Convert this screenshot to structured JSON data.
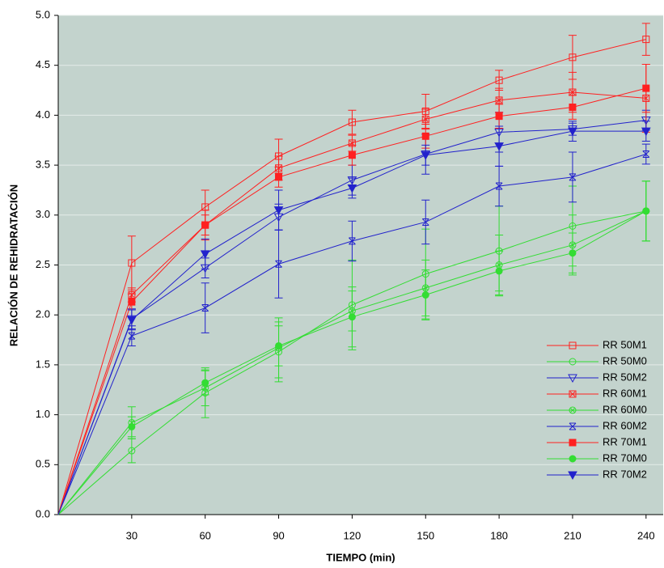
{
  "chart_data": {
    "type": "line",
    "x_label": "TIEMPO (min)",
    "y_label": "RELACIÓN DE REHIDRATACIÓN",
    "x": [
      0,
      30,
      60,
      90,
      120,
      150,
      180,
      210,
      240
    ],
    "xlim": [
      0,
      247
    ],
    "xticks": [
      30,
      60,
      90,
      120,
      150,
      180,
      210,
      240
    ],
    "ylim": [
      0,
      5
    ],
    "yticks": [
      {
        "value": 0,
        "label": "0.0"
      },
      0.5,
      {
        "value": 1,
        "label": "1.0"
      },
      1.5,
      {
        "value": 2,
        "label": "2.0"
      },
      2.5,
      {
        "value": 3,
        "label": "3.0"
      },
      3.5,
      {
        "value": 4,
        "label": "4.0"
      },
      4.5,
      {
        "value": 5,
        "label": "5.0"
      }
    ],
    "grid": true,
    "legend": "lower right",
    "series": [
      {
        "name": "RR 50M1",
        "color": "#ff2020",
        "marker": "square",
        "filled": false,
        "values": [
          0,
          2.52,
          3.08,
          3.59,
          3.93,
          4.04,
          4.35,
          4.58,
          4.76
        ],
        "errors": [
          0,
          0.27,
          0.17,
          0.17,
          0.12,
          0.17,
          0.1,
          0.22,
          0.16
        ]
      },
      {
        "name": "RR 50M0",
        "color": "#33dd33",
        "marker": "circle",
        "filled": false,
        "values": [
          0,
          0.64,
          1.22,
          1.63,
          2.1,
          2.41,
          2.64,
          2.89,
          3.04
        ],
        "errors": [
          0,
          0.12,
          0.25,
          0.3,
          0.45,
          0.45,
          0.45,
          0.4,
          0.3
        ]
      },
      {
        "name": "RR 50M2",
        "color": "#2222cc",
        "marker": "triangle-down",
        "filled": false,
        "values": [
          0,
          1.96,
          2.47,
          2.98,
          3.35,
          3.61,
          3.83,
          3.86,
          3.95
        ],
        "errors": [
          0,
          0.1,
          0.1,
          0.13,
          0.15,
          0.2,
          0.2,
          0.06,
          0.1
        ]
      },
      {
        "name": "RR 60M1",
        "color": "#ff2020",
        "marker": "square-cross",
        "filled": false,
        "values": [
          0,
          2.2,
          2.9,
          3.47,
          3.72,
          3.96,
          4.15,
          4.23,
          4.17
        ],
        "errors": [
          0,
          0.07,
          0.1,
          0.12,
          0.08,
          0.1,
          0.12,
          0.2,
          0.34
        ]
      },
      {
        "name": "RR 60M0",
        "color": "#33dd33",
        "marker": "circle-cross",
        "filled": false,
        "values": [
          0,
          0.92,
          1.27,
          1.67,
          2.04,
          2.27,
          2.5,
          2.7,
          3.04
        ],
        "errors": [
          0,
          0.16,
          0.18,
          0.3,
          0.2,
          0.28,
          0.3,
          0.3,
          0.3
        ]
      },
      {
        "name": "RR 60M2",
        "color": "#2222cc",
        "marker": "x",
        "filled": false,
        "values": [
          0,
          1.79,
          2.07,
          2.51,
          2.74,
          2.93,
          3.29,
          3.38,
          3.61
        ],
        "errors": [
          0,
          0.1,
          0.25,
          0.34,
          0.2,
          0.22,
          0.2,
          0.25,
          0.1
        ]
      },
      {
        "name": "RR 70M1",
        "color": "#ff2020",
        "marker": "square",
        "filled": true,
        "values": [
          0,
          2.13,
          2.9,
          3.38,
          3.6,
          3.79,
          3.99,
          4.08,
          4.27
        ],
        "errors": [
          0,
          0.08,
          0.15,
          0.1,
          0.1,
          0.12,
          0.12,
          0.12,
          0.24
        ]
      },
      {
        "name": "RR 70M0",
        "color": "#33dd33",
        "marker": "circle",
        "filled": true,
        "values": [
          0,
          0.88,
          1.32,
          1.69,
          1.98,
          2.2,
          2.44,
          2.62,
          3.04
        ],
        "errors": [
          0,
          0.1,
          0.12,
          0.2,
          0.3,
          0.25,
          0.2,
          0.2,
          0.3
        ]
      },
      {
        "name": "RR 70M2",
        "color": "#2222cc",
        "marker": "triangle-down",
        "filled": true,
        "values": [
          0,
          1.95,
          2.61,
          3.05,
          3.27,
          3.6,
          3.69,
          3.84,
          3.84
        ],
        "errors": [
          0,
          0.1,
          0.15,
          0.2,
          0.1,
          0.1,
          0.2,
          0.1,
          0.1
        ]
      }
    ]
  }
}
